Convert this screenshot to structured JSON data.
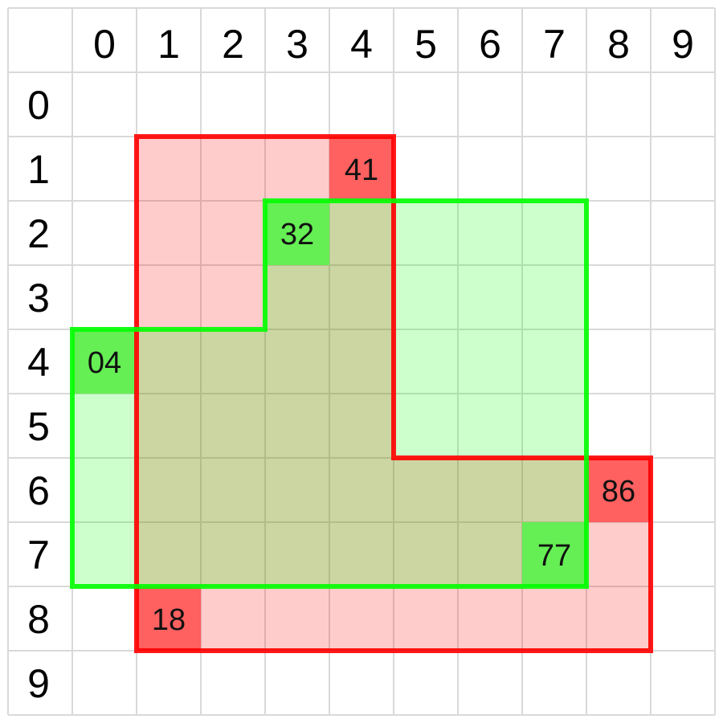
{
  "column_labels": [
    "0",
    "1",
    "2",
    "3",
    "4",
    "5",
    "6",
    "7",
    "8",
    "9"
  ],
  "row_labels": [
    "0",
    "1",
    "2",
    "3",
    "4",
    "5",
    "6",
    "7",
    "8",
    "9"
  ],
  "shapes": [
    {
      "name": "red-region",
      "fill": "#ff0000",
      "fill_opacity": 0.2,
      "stroke": "#ff0000",
      "label_fill": "#ff6060",
      "cells": [
        [
          1,
          1
        ],
        [
          1,
          2
        ],
        [
          1,
          3
        ],
        [
          1,
          4
        ],
        [
          2,
          1
        ],
        [
          2,
          2
        ],
        [
          2,
          3
        ],
        [
          2,
          4
        ],
        [
          3,
          1
        ],
        [
          3,
          2
        ],
        [
          3,
          3
        ],
        [
          3,
          4
        ],
        [
          4,
          1
        ],
        [
          4,
          2
        ],
        [
          4,
          3
        ],
        [
          4,
          4
        ],
        [
          5,
          1
        ],
        [
          5,
          2
        ],
        [
          5,
          3
        ],
        [
          5,
          4
        ],
        [
          6,
          1
        ],
        [
          6,
          2
        ],
        [
          6,
          3
        ],
        [
          6,
          4
        ],
        [
          6,
          5
        ],
        [
          6,
          6
        ],
        [
          6,
          7
        ],
        [
          6,
          8
        ],
        [
          7,
          1
        ],
        [
          7,
          2
        ],
        [
          7,
          3
        ],
        [
          7,
          4
        ],
        [
          7,
          5
        ],
        [
          7,
          6
        ],
        [
          7,
          7
        ],
        [
          7,
          8
        ],
        [
          8,
          1
        ],
        [
          8,
          2
        ],
        [
          8,
          3
        ],
        [
          8,
          4
        ],
        [
          8,
          5
        ],
        [
          8,
          6
        ],
        [
          8,
          7
        ],
        [
          8,
          8
        ]
      ],
      "labels": [
        {
          "row": 1,
          "col": 4,
          "text": "41"
        },
        {
          "row": 6,
          "col": 8,
          "text": "86"
        },
        {
          "row": 8,
          "col": 1,
          "text": "18"
        }
      ]
    },
    {
      "name": "green-region",
      "fill": "#00ff00",
      "fill_opacity": 0.2,
      "stroke": "#00ff00",
      "label_fill": "#66ee55",
      "cells": [
        [
          2,
          3
        ],
        [
          2,
          4
        ],
        [
          2,
          5
        ],
        [
          2,
          6
        ],
        [
          2,
          7
        ],
        [
          3,
          3
        ],
        [
          3,
          4
        ],
        [
          3,
          5
        ],
        [
          3,
          6
        ],
        [
          3,
          7
        ],
        [
          4,
          0
        ],
        [
          4,
          1
        ],
        [
          4,
          2
        ],
        [
          4,
          3
        ],
        [
          4,
          4
        ],
        [
          4,
          5
        ],
        [
          4,
          6
        ],
        [
          4,
          7
        ],
        [
          5,
          0
        ],
        [
          5,
          1
        ],
        [
          5,
          2
        ],
        [
          5,
          3
        ],
        [
          5,
          4
        ],
        [
          5,
          5
        ],
        [
          5,
          6
        ],
        [
          5,
          7
        ],
        [
          6,
          0
        ],
        [
          6,
          1
        ],
        [
          6,
          2
        ],
        [
          6,
          3
        ],
        [
          6,
          4
        ],
        [
          6,
          5
        ],
        [
          6,
          6
        ],
        [
          6,
          7
        ],
        [
          7,
          0
        ],
        [
          7,
          1
        ],
        [
          7,
          2
        ],
        [
          7,
          3
        ],
        [
          7,
          4
        ],
        [
          7,
          5
        ],
        [
          7,
          6
        ],
        [
          7,
          7
        ]
      ],
      "labels": [
        {
          "row": 2,
          "col": 3,
          "text": "32"
        },
        {
          "row": 4,
          "col": 0,
          "text": "04"
        },
        {
          "row": 7,
          "col": 7,
          "text": "77"
        }
      ]
    }
  ]
}
